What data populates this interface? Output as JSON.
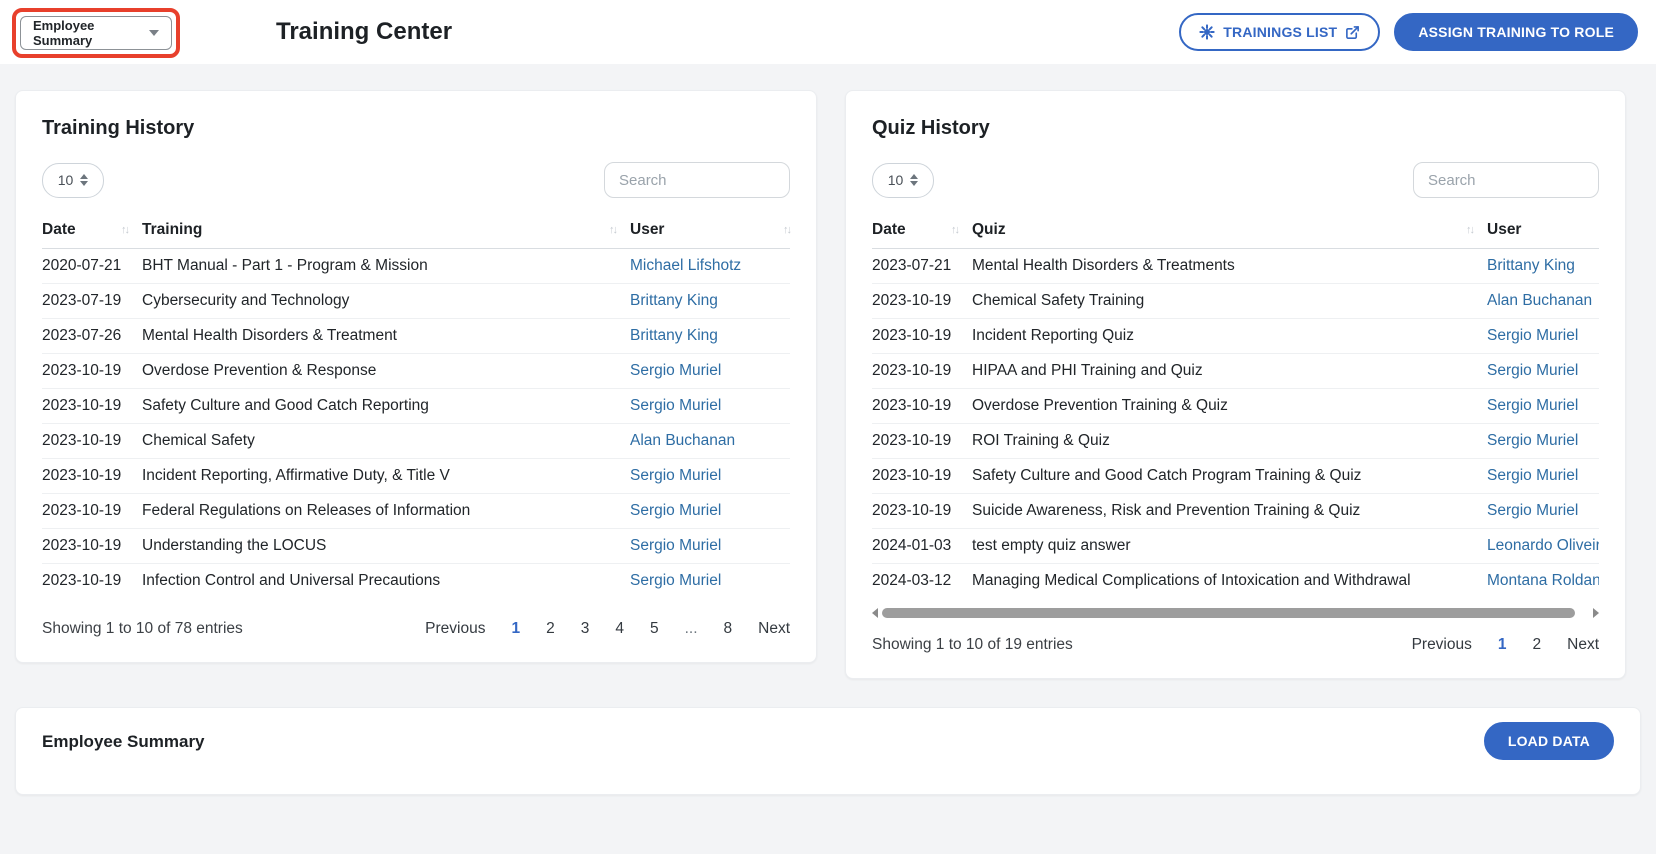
{
  "header": {
    "view_select_value": "Employee Summary",
    "title": "Training Center",
    "trainings_list_label": "TRAININGS LIST",
    "assign_label": "ASSIGN TRAINING TO ROLE"
  },
  "colors": {
    "primary_blue": "#3467c4",
    "link_blue": "#2e6da4",
    "highlight_red": "#e8402c"
  },
  "training_card": {
    "title": "Training History",
    "page_size": "10",
    "search_placeholder": "Search",
    "columns": [
      "Date",
      "Training",
      "User"
    ],
    "rows": [
      [
        "2020-07-21",
        "BHT Manual - Part 1 - Program & Mission",
        "Michael Lifshotz"
      ],
      [
        "2023-07-19",
        "Cybersecurity and Technology",
        "Brittany King"
      ],
      [
        "2023-07-26",
        "Mental Health Disorders & Treatment",
        "Brittany King"
      ],
      [
        "2023-10-19",
        "Overdose Prevention & Response",
        "Sergio Muriel"
      ],
      [
        "2023-10-19",
        "Safety Culture and Good Catch Reporting",
        "Sergio Muriel"
      ],
      [
        "2023-10-19",
        "Chemical Safety",
        "Alan Buchanan"
      ],
      [
        "2023-10-19",
        "Incident Reporting, Affirmative Duty, & Title V",
        "Sergio Muriel"
      ],
      [
        "2023-10-19",
        "Federal Regulations on Releases of Information",
        "Sergio Muriel"
      ],
      [
        "2023-10-19",
        "Understanding the LOCUS",
        "Sergio Muriel"
      ],
      [
        "2023-10-19",
        "Infection Control and Universal Precautions",
        "Sergio Muriel"
      ]
    ],
    "showing": "Showing 1 to 10 of 78 entries",
    "pagination": {
      "previous": "Previous",
      "pages": [
        "1",
        "2",
        "3",
        "4",
        "5",
        "...",
        "8"
      ],
      "active": "1",
      "next": "Next"
    }
  },
  "quiz_card": {
    "title": "Quiz History",
    "page_size": "10",
    "search_placeholder": "Search",
    "columns": [
      "Date",
      "Quiz",
      "User"
    ],
    "rows": [
      [
        "2023-07-21",
        "Mental Health Disorders & Treatments",
        "Brittany King"
      ],
      [
        "2023-10-19",
        "Chemical Safety Training",
        "Alan Buchanan"
      ],
      [
        "2023-10-19",
        "Incident Reporting Quiz",
        "Sergio Muriel"
      ],
      [
        "2023-10-19",
        "HIPAA and PHI Training and Quiz",
        "Sergio Muriel"
      ],
      [
        "2023-10-19",
        "Overdose Prevention Training & Quiz",
        "Sergio Muriel"
      ],
      [
        "2023-10-19",
        "ROI Training & Quiz",
        "Sergio Muriel"
      ],
      [
        "2023-10-19",
        "Safety Culture and Good Catch Program Training & Quiz",
        "Sergio Muriel"
      ],
      [
        "2023-10-19",
        "Suicide Awareness, Risk and Prevention Training & Quiz",
        "Sergio Muriel"
      ],
      [
        "2024-01-03",
        "test empty quiz answer",
        "Leonardo Oliveira"
      ],
      [
        "2024-03-12",
        "Managing Medical Complications of Intoxication and Withdrawal",
        "Montana Roldan"
      ]
    ],
    "showing": "Showing 1 to 10 of 19 entries",
    "pagination": {
      "previous": "Previous",
      "pages": [
        "1",
        "2"
      ],
      "active": "1",
      "next": "Next"
    }
  },
  "summary_card": {
    "title": "Employee Summary",
    "load_button": "LOAD DATA"
  }
}
